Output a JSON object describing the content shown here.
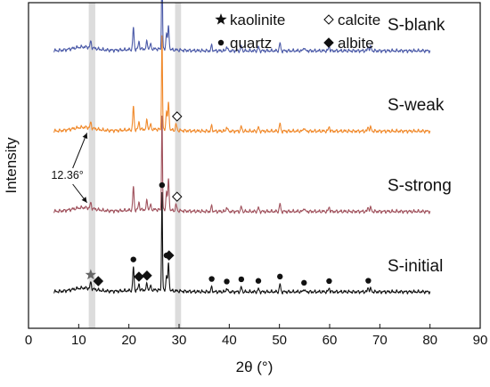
{
  "chart_data": {
    "type": "line",
    "title": "",
    "xlabel": "2θ (°)",
    "ylabel": "Intensity",
    "xlim": [
      0,
      90
    ],
    "xticks": [
      0,
      10,
      20,
      30,
      40,
      50,
      60,
      70,
      80,
      90
    ],
    "yticks_shown": false,
    "grid": false,
    "highlight_bands": [
      {
        "x_from": 12.0,
        "x_to": 13.3,
        "color": "#dcdcdc"
      },
      {
        "x_from": 29.2,
        "x_to": 30.4,
        "color": "#dcdcdc"
      }
    ],
    "legend": {
      "placement": "top",
      "entries": [
        {
          "symbol": "star",
          "label": "kaolinite"
        },
        {
          "symbol": "open-diamond",
          "label": "calcite"
        },
        {
          "symbol": "circle",
          "label": "quartz"
        },
        {
          "symbol": "filled-diamond",
          "label": "albite"
        }
      ]
    },
    "series": [
      {
        "name": "S-blank",
        "color": "#4b5aa8",
        "offset": 3.15,
        "peaks": [
          [
            12.4,
            0.08
          ],
          [
            20.9,
            0.28
          ],
          [
            22.0,
            0.1
          ],
          [
            23.6,
            0.1
          ],
          [
            24.3,
            0.06
          ],
          [
            26.6,
            1.2
          ],
          [
            27.5,
            0.22
          ],
          [
            27.9,
            0.3
          ],
          [
            36.5,
            0.07
          ],
          [
            39.5,
            0.06
          ],
          [
            42.4,
            0.06
          ],
          [
            45.8,
            0.05
          ],
          [
            50.1,
            0.1
          ],
          [
            54.9,
            0.05
          ],
          [
            59.9,
            0.06
          ],
          [
            67.7,
            0.06
          ],
          [
            68.2,
            0.05
          ]
        ]
      },
      {
        "name": "S-weak",
        "color": "#f0892b",
        "offset": 2.1,
        "peaks": [
          [
            12.4,
            0.07
          ],
          [
            20.9,
            0.3
          ],
          [
            22.0,
            0.1
          ],
          [
            23.6,
            0.12
          ],
          [
            24.3,
            0.06
          ],
          [
            26.6,
            1.25
          ],
          [
            27.5,
            0.25
          ],
          [
            27.9,
            0.35
          ],
          [
            29.4,
            0.08
          ],
          [
            36.5,
            0.07
          ],
          [
            39.5,
            0.06
          ],
          [
            42.4,
            0.06
          ],
          [
            45.8,
            0.05
          ],
          [
            50.1,
            0.1
          ],
          [
            54.9,
            0.05
          ],
          [
            59.9,
            0.06
          ],
          [
            67.7,
            0.06
          ],
          [
            68.2,
            0.05
          ]
        ]
      },
      {
        "name": "S-strong",
        "color": "#a0525d",
        "offset": 1.05,
        "peaks": [
          [
            12.4,
            0.07
          ],
          [
            20.9,
            0.3
          ],
          [
            22.0,
            0.1
          ],
          [
            23.6,
            0.12
          ],
          [
            24.3,
            0.06
          ],
          [
            26.6,
            1.25
          ],
          [
            27.5,
            0.25
          ],
          [
            27.9,
            0.4
          ],
          [
            29.4,
            0.08
          ],
          [
            36.5,
            0.07
          ],
          [
            39.5,
            0.06
          ],
          [
            42.4,
            0.06
          ],
          [
            45.8,
            0.05
          ],
          [
            50.1,
            0.1
          ],
          [
            54.9,
            0.05
          ],
          [
            59.9,
            0.06
          ],
          [
            67.7,
            0.06
          ],
          [
            68.2,
            0.05
          ]
        ]
      },
      {
        "name": "S-initial",
        "color": "#111111",
        "offset": 0.0,
        "peaks": [
          [
            12.4,
            0.08
          ],
          [
            20.9,
            0.3
          ],
          [
            22.0,
            0.08
          ],
          [
            23.6,
            0.08
          ],
          [
            24.3,
            0.05
          ],
          [
            26.6,
            1.3
          ],
          [
            27.5,
            0.2
          ],
          [
            27.9,
            0.35
          ],
          [
            36.5,
            0.06
          ],
          [
            39.5,
            0.05
          ],
          [
            42.4,
            0.06
          ],
          [
            45.8,
            0.04
          ],
          [
            50.1,
            0.1
          ],
          [
            54.9,
            0.04
          ],
          [
            59.9,
            0.05
          ],
          [
            67.7,
            0.06
          ],
          [
            68.2,
            0.04
          ]
        ]
      }
    ],
    "phase_markers": [
      {
        "series": "S-initial",
        "symbol": "star",
        "x": 12.4
      },
      {
        "series": "S-initial",
        "symbol": "filled-diamond",
        "x": 13.9
      },
      {
        "series": "S-initial",
        "symbol": "circle",
        "x": 20.9
      },
      {
        "series": "S-initial",
        "symbol": "filled-diamond",
        "x": 22.0
      },
      {
        "series": "S-initial",
        "symbol": "filled-diamond",
        "x": 23.6
      },
      {
        "series": "S-initial",
        "symbol": "circle",
        "x": 26.6
      },
      {
        "series": "S-initial",
        "symbol": "circle",
        "x": 27.5
      },
      {
        "series": "S-initial",
        "symbol": "filled-diamond",
        "x": 28.0
      },
      {
        "series": "S-initial",
        "symbol": "circle",
        "x": 36.5
      },
      {
        "series": "S-initial",
        "symbol": "circle",
        "x": 39.5
      },
      {
        "series": "S-initial",
        "symbol": "circle",
        "x": 42.4
      },
      {
        "series": "S-initial",
        "symbol": "circle",
        "x": 45.8
      },
      {
        "series": "S-initial",
        "symbol": "circle",
        "x": 50.1
      },
      {
        "series": "S-initial",
        "symbol": "circle",
        "x": 54.9
      },
      {
        "series": "S-initial",
        "symbol": "circle",
        "x": 59.9
      },
      {
        "series": "S-initial",
        "symbol": "circle",
        "x": 67.7
      },
      {
        "series": "S-weak",
        "symbol": "open-diamond",
        "x": 29.6
      },
      {
        "series": "S-strong",
        "symbol": "open-diamond",
        "x": 29.6
      }
    ],
    "annotation": {
      "text": "12.36°",
      "points_to": [
        "S-weak",
        "S-strong"
      ],
      "x": 12.36
    }
  }
}
